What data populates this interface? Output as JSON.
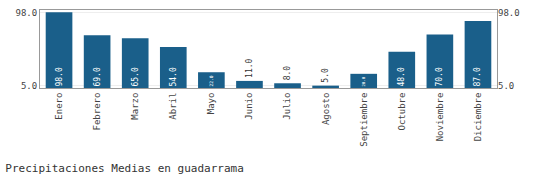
{
  "chart_data": {
    "type": "bar",
    "title": "Precipitaciones Medias en guadarrama",
    "categories": [
      "Enero",
      "Febrero",
      "Marzo",
      "Abril",
      "Mayo",
      "Junio",
      "Julio",
      "Agosto",
      "Septiembre",
      "Octubre",
      "Noviembre",
      "Diciembre"
    ],
    "values": [
      98.0,
      69.0,
      65.0,
      54.0,
      22.0,
      11.0,
      8.0,
      5.0,
      20.0,
      48.0,
      70.0,
      87.0
    ],
    "value_labels": [
      "98.0",
      "69.0",
      "65.0",
      "54.0",
      "22.0",
      "11.0",
      "8.0",
      "5.0",
      "20.0",
      "48.0",
      "70.0",
      "87.0"
    ],
    "data_labels": true,
    "color": "#1a5f8a",
    "ylim": [
      2.0,
      101.0
    ],
    "yticks": [
      {
        "value": 5.0,
        "label": "5.0"
      },
      {
        "value": 98.0,
        "label": "98.0"
      }
    ],
    "grid": true
  }
}
